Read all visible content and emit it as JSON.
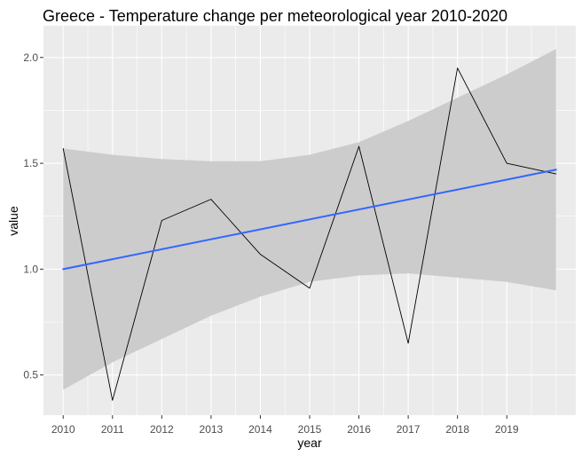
{
  "chart_data": {
    "type": "line",
    "title": "Greece - Temperature change per meteorological year 2010-2020",
    "xlabel": "year",
    "ylabel": "value",
    "x_ticks": [
      "2010",
      "2011",
      "2012",
      "2013",
      "2014",
      "2015",
      "2016",
      "2017",
      "2018",
      "2019"
    ],
    "y_ticks": [
      "0.5",
      "1.0",
      "1.5",
      "2.0"
    ],
    "xlim": [
      2009.6,
      2020.4
    ],
    "ylim": [
      0.31,
      2.15
    ],
    "grid": true,
    "legend": "none",
    "series": [
      {
        "kind": "observed",
        "color": "#000000",
        "x": [
          2010,
          2011,
          2012,
          2013,
          2014,
          2015,
          2016,
          2017,
          2018,
          2019,
          2020
        ],
        "y": [
          1.57,
          0.38,
          1.23,
          1.33,
          1.07,
          0.91,
          1.58,
          0.65,
          1.95,
          1.5,
          1.45
        ]
      },
      {
        "kind": "linear-trend",
        "color": "#3366FF",
        "x": [
          2010,
          2020
        ],
        "y": [
          1.0,
          1.47
        ]
      }
    ],
    "confidence_band": {
      "color": "#cccccc",
      "x": [
        2010,
        2011,
        2012,
        2013,
        2014,
        2015,
        2016,
        2017,
        2018,
        2019,
        2020
      ],
      "lower": [
        0.43,
        0.56,
        0.67,
        0.78,
        0.87,
        0.94,
        0.97,
        0.98,
        0.96,
        0.94,
        0.9
      ],
      "upper": [
        1.57,
        1.54,
        1.52,
        1.51,
        1.51,
        1.54,
        1.6,
        1.7,
        1.81,
        1.92,
        2.04
      ]
    },
    "colors": {
      "panel_background": "#ebebeb",
      "grid_major": "#ffffff"
    }
  }
}
